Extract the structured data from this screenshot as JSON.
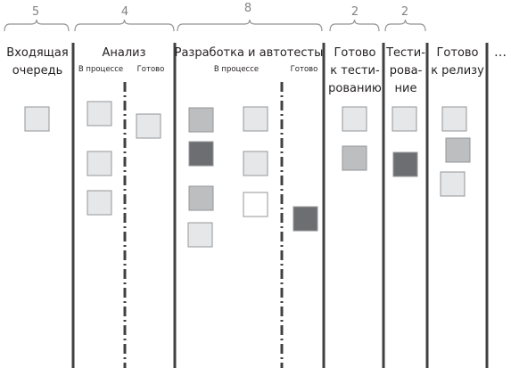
{
  "colors": {
    "divider": "#414042",
    "brace": "#939598",
    "card_border": "#939598",
    "card_light": "#e6e7e8",
    "card_mid": "#bcbec0",
    "card_dark": "#6d6e71",
    "card_white": "#ffffff",
    "text": "#231f20",
    "limit_text": "#808285"
  },
  "columns": [
    {
      "id": "incoming",
      "title": "Входящая\nочередь",
      "wip": "5",
      "cards": [
        {
          "shade": "light"
        }
      ]
    },
    {
      "id": "analysis",
      "title": "Анализ",
      "wip": "4",
      "sub": [
        {
          "label": "В процессе",
          "cards": [
            {
              "shade": "light"
            },
            {
              "shade": "light"
            },
            {
              "shade": "light"
            }
          ]
        },
        {
          "label": "Готово",
          "cards": [
            {
              "shade": "light"
            }
          ]
        }
      ]
    },
    {
      "id": "dev",
      "title": "Разработка и автотесты",
      "wip": "8",
      "sub": [
        {
          "label": "В процессе",
          "cards": [
            {
              "shade": "mid"
            },
            {
              "shade": "dark"
            },
            {
              "shade": "mid"
            },
            {
              "shade": "light"
            },
            {
              "shade": "light"
            },
            {
              "shade": "light"
            },
            {
              "shade": "white"
            }
          ]
        },
        {
          "label": "Готово",
          "cards": [
            {
              "shade": "dark"
            }
          ]
        }
      ]
    },
    {
      "id": "ready-test",
      "title": "Готово\nк тести-\nрованию",
      "wip": "2",
      "cards": [
        {
          "shade": "light"
        },
        {
          "shade": "mid"
        }
      ]
    },
    {
      "id": "testing",
      "title": "Тести-\nрова-\nние",
      "wip": "2",
      "cards": [
        {
          "shade": "light"
        },
        {
          "shade": "dark"
        }
      ]
    },
    {
      "id": "ready-release",
      "title": "Готово\nк релизу",
      "cards": [
        {
          "shade": "light"
        },
        {
          "shade": "mid"
        },
        {
          "shade": "light"
        }
      ]
    },
    {
      "id": "more",
      "title": "…"
    }
  ]
}
